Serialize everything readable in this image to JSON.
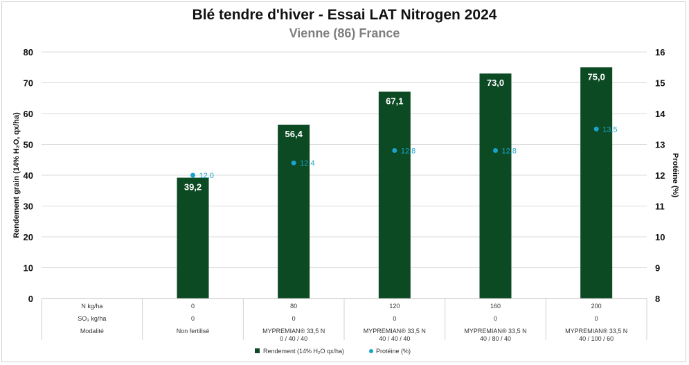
{
  "chart_data": {
    "type": "bar",
    "title": "Blé tendre d'hiver - Essai LAT Nitrogen 2024",
    "subtitle": "Vienne (86) France",
    "ylabel": "Rendement grain (14% H₂O, qx/ha)",
    "y2label": "Protéine (%)",
    "ylim": [
      0,
      80
    ],
    "yticks": [
      "0",
      "10",
      "20",
      "30",
      "40",
      "50",
      "60",
      "70",
      "80"
    ],
    "y2lim": [
      8,
      16
    ],
    "y2ticks": [
      "8",
      "9",
      "10",
      "11",
      "12",
      "13",
      "14",
      "15",
      "16"
    ],
    "grid": true,
    "legend_position": "bottom",
    "table_row_labels": [
      "N kg/ha",
      "SO₃ kg/ha",
      "Modalité"
    ],
    "columns": [
      {
        "n": "",
        "so3": "",
        "modalite": [
          "",
          ""
        ]
      },
      {
        "n": "0",
        "so3": "0",
        "modalite": [
          "Non fertilisé",
          ""
        ]
      },
      {
        "n": "80",
        "so3": "0",
        "modalite": [
          "MYPREMIAN® 33,5 N",
          "0 / 40 / 40"
        ]
      },
      {
        "n": "120",
        "so3": "0",
        "modalite": [
          "MYPREMIAN® 33,5 N",
          "40 / 40 / 40"
        ]
      },
      {
        "n": "160",
        "so3": "0",
        "modalite": [
          "MYPREMIAN® 33,5 N",
          "40 / 80 / 40"
        ]
      },
      {
        "n": "200",
        "so3": "0",
        "modalite": [
          "MYPREMIAN® 33,5 N",
          "40 / 100 / 60"
        ]
      }
    ],
    "series": [
      {
        "name": "Rendement (14% H₂O qx/ha)",
        "type": "bar",
        "axis": "left",
        "color": "#0c4a24",
        "values": [
          null,
          39.2,
          56.4,
          67.1,
          73.0,
          75.0
        ],
        "labels": [
          "",
          "39,2",
          "56,4",
          "67,1",
          "73,0",
          "75,0"
        ]
      },
      {
        "name": "Protéine (%)",
        "type": "scatter",
        "axis": "right",
        "color": "#1aa3cc",
        "values": [
          null,
          12.0,
          12.4,
          12.8,
          12.8,
          13.5
        ],
        "labels": [
          "",
          "12,0",
          "12,4",
          "12,8",
          "12,8",
          "13,5"
        ]
      }
    ]
  }
}
